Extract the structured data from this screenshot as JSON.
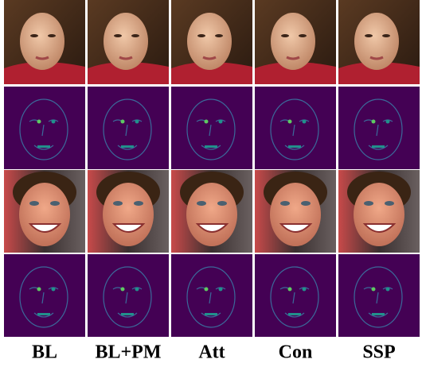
{
  "columns": [
    "BL",
    "BL+PM",
    "Att",
    "Con",
    "SSP"
  ]
}
